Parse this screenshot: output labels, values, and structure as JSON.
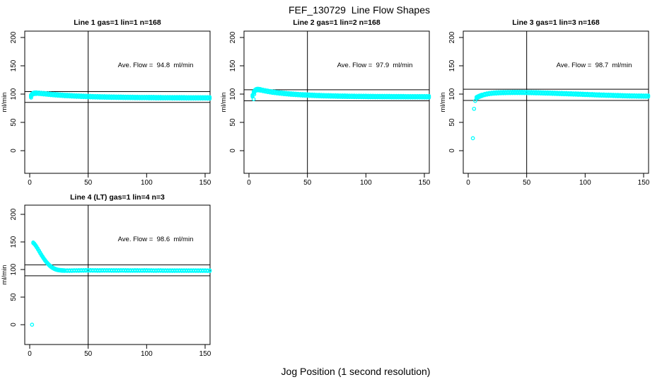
{
  "figure": {
    "title": "FEF_130729  Line Flow Shapes",
    "xlabel": "Jog Position (1 second resolution)",
    "background_color": "#ffffff",
    "axis_color": "#000000",
    "point_color": "#00ffff"
  },
  "chart_data": [
    {
      "type": "scatter",
      "title": "Line 1 gas=1 lin=1 n=168",
      "annotation": "Ave. Flow =  94.8  ml/min",
      "ave_flow_ml_min": 94.8,
      "n": 168,
      "ylabel": "ml/min",
      "xticks": [
        0,
        50,
        100,
        150
      ],
      "yticks": [
        0,
        50,
        100,
        150,
        200
      ],
      "xlim": [
        -5,
        155
      ],
      "ylim": [
        -40,
        210
      ],
      "vline": 50,
      "hlines": [
        104.3,
        85.3
      ],
      "band_spread": 1.6,
      "outliers": [
        [
          1.2,
          93.8
        ]
      ],
      "band": [
        [
          1,
          97
        ],
        [
          2,
          99.5
        ],
        [
          3,
          100.9
        ],
        [
          4,
          101.5
        ],
        [
          5,
          101.7
        ],
        [
          6,
          101.7
        ],
        [
          8,
          101.4
        ],
        [
          10,
          101.1
        ],
        [
          12,
          100.7
        ],
        [
          14,
          100.3
        ],
        [
          16,
          99.9
        ],
        [
          18,
          99.5
        ],
        [
          20,
          99.1
        ],
        [
          22,
          98.8
        ],
        [
          24,
          98.5
        ],
        [
          26,
          98.2
        ],
        [
          28,
          97.9
        ],
        [
          30,
          97.6
        ],
        [
          32,
          97.4
        ],
        [
          34,
          97.2
        ],
        [
          36,
          96.9
        ],
        [
          38,
          96.7
        ],
        [
          40,
          96.5
        ],
        [
          42,
          96.4
        ],
        [
          44,
          96.2
        ],
        [
          46,
          96
        ],
        [
          48,
          95.9
        ],
        [
          50,
          95.7
        ],
        [
          52,
          95.6
        ],
        [
          54,
          95.4
        ],
        [
          56,
          95.3
        ],
        [
          58,
          95.2
        ],
        [
          60,
          95.1
        ],
        [
          62,
          95
        ],
        [
          64,
          94.9
        ],
        [
          66,
          94.8
        ],
        [
          68,
          94.7
        ],
        [
          70,
          94.6
        ],
        [
          72,
          94.6
        ],
        [
          74,
          94.5
        ],
        [
          76,
          94.4
        ],
        [
          78,
          94.4
        ],
        [
          80,
          94.3
        ],
        [
          82,
          94.2
        ],
        [
          84,
          94.2
        ],
        [
          86,
          94.1
        ],
        [
          88,
          94.1
        ],
        [
          90,
          94
        ],
        [
          92,
          94
        ],
        [
          94,
          93.9
        ],
        [
          96,
          93.9
        ],
        [
          98,
          93.9
        ],
        [
          100,
          93.9
        ],
        [
          102,
          93.8
        ],
        [
          104,
          93.8
        ],
        [
          106,
          93.8
        ],
        [
          108,
          93.7
        ],
        [
          110,
          93.7
        ],
        [
          112,
          93.7
        ],
        [
          114,
          93.6
        ],
        [
          116,
          93.6
        ],
        [
          118,
          93.6
        ],
        [
          120,
          93.6
        ],
        [
          122,
          93.5
        ],
        [
          124,
          93.5
        ],
        [
          126,
          93.5
        ],
        [
          128,
          93.5
        ],
        [
          130,
          93.5
        ],
        [
          132,
          93.5
        ],
        [
          134,
          93.4
        ],
        [
          136,
          93.4
        ],
        [
          138,
          93.4
        ],
        [
          140,
          93.4
        ],
        [
          142,
          93.4
        ],
        [
          144,
          93.4
        ],
        [
          146,
          93.4
        ],
        [
          148,
          93.4
        ],
        [
          150,
          93.4
        ],
        [
          152,
          93.3
        ],
        [
          154,
          93.3
        ]
      ]
    },
    {
      "type": "scatter",
      "title": "Line 2 gas=1 lin=2 n=168",
      "annotation": "Ave. Flow =  97.9  ml/min",
      "ave_flow_ml_min": 97.9,
      "n": 168,
      "ylabel": "ml/min",
      "xticks": [
        0,
        50,
        100,
        150
      ],
      "yticks": [
        0,
        50,
        100,
        150,
        200
      ],
      "xlim": [
        -5,
        155
      ],
      "ylim": [
        -40,
        210
      ],
      "vline": 50,
      "hlines": [
        107.7,
        88.1
      ],
      "band_spread": 1.6,
      "outliers": [
        [
          4,
          91
        ],
        [
          4.5,
          99.5
        ]
      ],
      "band": [
        [
          3,
          97
        ],
        [
          4,
          103
        ],
        [
          5,
          105.8
        ],
        [
          6,
          107.4
        ],
        [
          7,
          108
        ],
        [
          8,
          108.1
        ],
        [
          9,
          107.8
        ],
        [
          10,
          107.4
        ],
        [
          12,
          106.5
        ],
        [
          14,
          105.7
        ],
        [
          16,
          104.9
        ],
        [
          18,
          104.2
        ],
        [
          20,
          103.5
        ],
        [
          22,
          103
        ],
        [
          24,
          102.5
        ],
        [
          26,
          102
        ],
        [
          28,
          101.6
        ],
        [
          30,
          101.2
        ],
        [
          32,
          100.8
        ],
        [
          34,
          100.4
        ],
        [
          36,
          100.1
        ],
        [
          38,
          99.8
        ],
        [
          40,
          99.5
        ],
        [
          42,
          99.2
        ],
        [
          44,
          98.9
        ],
        [
          46,
          98.7
        ],
        [
          48,
          98.5
        ],
        [
          50,
          98.3
        ],
        [
          52,
          98.1
        ],
        [
          54,
          97.9
        ],
        [
          56,
          97.7
        ],
        [
          58,
          97.5
        ],
        [
          60,
          97.4
        ],
        [
          62,
          97.2
        ],
        [
          64,
          97.1
        ],
        [
          66,
          97
        ],
        [
          68,
          96.9
        ],
        [
          70,
          96.8
        ],
        [
          72,
          96.7
        ],
        [
          74,
          96.6
        ],
        [
          76,
          96.5
        ],
        [
          78,
          96.4
        ],
        [
          80,
          96.3
        ],
        [
          82,
          96.3
        ],
        [
          84,
          96.2
        ],
        [
          86,
          96.1
        ],
        [
          88,
          96.1
        ],
        [
          90,
          96
        ],
        [
          92,
          95.9
        ],
        [
          94,
          95.9
        ],
        [
          96,
          95.9
        ],
        [
          98,
          95.8
        ],
        [
          100,
          95.8
        ],
        [
          102,
          95.7
        ],
        [
          104,
          95.7
        ],
        [
          106,
          95.7
        ],
        [
          108,
          95.6
        ],
        [
          110,
          95.6
        ],
        [
          112,
          95.6
        ],
        [
          114,
          95.5
        ],
        [
          116,
          95.5
        ],
        [
          118,
          95.5
        ],
        [
          120,
          95.5
        ],
        [
          122,
          95.4
        ],
        [
          124,
          95.4
        ],
        [
          126,
          95.4
        ],
        [
          128,
          95.4
        ],
        [
          130,
          95.4
        ],
        [
          132,
          95.4
        ],
        [
          134,
          95.3
        ],
        [
          136,
          95.3
        ],
        [
          138,
          95.3
        ],
        [
          140,
          95.3
        ],
        [
          142,
          95.3
        ],
        [
          144,
          95.3
        ],
        [
          146,
          95.3
        ],
        [
          148,
          95.3
        ],
        [
          150,
          95.2
        ],
        [
          152,
          95.2
        ],
        [
          154,
          95.2
        ]
      ]
    },
    {
      "type": "scatter",
      "title": "Line 3 gas=1 lin=3 n=168",
      "annotation": "Ave. Flow =  98.7  ml/min",
      "ave_flow_ml_min": 98.7,
      "n": 168,
      "ylabel": "ml/min",
      "xticks": [
        0,
        50,
        100,
        150
      ],
      "yticks": [
        0,
        50,
        100,
        150,
        200
      ],
      "xlim": [
        -5,
        155
      ],
      "ylim": [
        -40,
        210
      ],
      "vline": 50,
      "hlines": [
        108.6,
        88.8
      ],
      "band_spread": 1.4,
      "outliers": [
        [
          4,
          22
        ],
        [
          5,
          74
        ],
        [
          6,
          88
        ]
      ],
      "band": [
        [
          7,
          93.5
        ],
        [
          8,
          94.6
        ],
        [
          9,
          95.6
        ],
        [
          10,
          96.5
        ],
        [
          11,
          97.3
        ],
        [
          12,
          98
        ],
        [
          14,
          99.2
        ],
        [
          16,
          100.2
        ],
        [
          18,
          100.9
        ],
        [
          20,
          101.4
        ],
        [
          22,
          101.8
        ],
        [
          24,
          102.1
        ],
        [
          26,
          102.3
        ],
        [
          28,
          102.5
        ],
        [
          30,
          102.6
        ],
        [
          32,
          102.7
        ],
        [
          34,
          102.8
        ],
        [
          36,
          102.8
        ],
        [
          38,
          102.9
        ],
        [
          40,
          102.9
        ],
        [
          42,
          102.9
        ],
        [
          44,
          102.9
        ],
        [
          46,
          102.9
        ],
        [
          48,
          102.8
        ],
        [
          50,
          102.8
        ],
        [
          52,
          102.7
        ],
        [
          54,
          102.6
        ],
        [
          56,
          102.5
        ],
        [
          58,
          102.4
        ],
        [
          60,
          102.3
        ],
        [
          62,
          102.2
        ],
        [
          64,
          102
        ],
        [
          66,
          101.9
        ],
        [
          68,
          101.8
        ],
        [
          70,
          101.7
        ],
        [
          72,
          101.5
        ],
        [
          74,
          101.4
        ],
        [
          76,
          101.2
        ],
        [
          78,
          101.1
        ],
        [
          80,
          101
        ],
        [
          82,
          100.8
        ],
        [
          84,
          100.7
        ],
        [
          86,
          100.5
        ],
        [
          88,
          100.4
        ],
        [
          90,
          100.2
        ],
        [
          92,
          100.1
        ],
        [
          94,
          99.9
        ],
        [
          96,
          99.8
        ],
        [
          98,
          99.6
        ],
        [
          100,
          99.4
        ],
        [
          102,
          99.3
        ],
        [
          104,
          99.1
        ],
        [
          106,
          99
        ],
        [
          108,
          98.8
        ],
        [
          110,
          98.6
        ],
        [
          112,
          98.5
        ],
        [
          114,
          98.3
        ],
        [
          116,
          98.2
        ],
        [
          118,
          98
        ],
        [
          120,
          97.9
        ],
        [
          122,
          97.8
        ],
        [
          124,
          97.6
        ],
        [
          126,
          97.5
        ],
        [
          128,
          97.4
        ],
        [
          130,
          97.3
        ],
        [
          132,
          97.1
        ],
        [
          134,
          97
        ],
        [
          136,
          96.9
        ],
        [
          138,
          96.8
        ],
        [
          140,
          96.7
        ],
        [
          142,
          96.7
        ],
        [
          144,
          96.6
        ],
        [
          146,
          96.5
        ],
        [
          148,
          96.5
        ],
        [
          150,
          96.4
        ],
        [
          152,
          96.4
        ],
        [
          154,
          96.4
        ]
      ]
    },
    {
      "type": "scatter",
      "title": "Line 4 (LT) gas=1 lin=4 n=3",
      "annotation": "Ave. Flow =  98.6  ml/min",
      "ave_flow_ml_min": 98.6,
      "n": 3,
      "ylabel": "ml/min",
      "xticks": [
        0,
        50,
        100,
        150
      ],
      "yticks": [
        0,
        50,
        100,
        150,
        200
      ],
      "xlim": [
        -5,
        155
      ],
      "ylim": [
        -40,
        210
      ],
      "vline": 50,
      "hlines": [
        108.5,
        88.7
      ],
      "band_spread": 0.8,
      "outliers": [
        [
          2,
          0
        ]
      ],
      "band": [
        [
          3,
          148.5
        ],
        [
          4,
          146.5
        ],
        [
          5,
          143.8
        ],
        [
          6,
          140.6
        ],
        [
          7,
          137.2
        ],
        [
          8,
          133.6
        ],
        [
          9,
          130
        ],
        [
          10,
          126.5
        ],
        [
          11,
          123.2
        ],
        [
          12,
          120
        ],
        [
          13,
          117
        ],
        [
          14,
          114.2
        ],
        [
          15,
          111.7
        ],
        [
          16,
          109.4
        ],
        [
          17,
          107.4
        ],
        [
          18,
          105.6
        ],
        [
          19,
          104
        ],
        [
          20,
          102.7
        ],
        [
          21,
          101.6
        ],
        [
          22,
          100.7
        ],
        [
          23,
          100
        ],
        [
          24,
          99.4
        ],
        [
          25,
          99
        ],
        [
          26,
          98.7
        ],
        [
          27,
          98.5
        ],
        [
          28,
          98.3
        ],
        [
          29,
          98.2
        ],
        [
          30,
          98.1
        ],
        [
          32,
          98
        ],
        [
          34,
          98
        ],
        [
          36,
          98.1
        ],
        [
          38,
          98.2
        ],
        [
          40,
          98.2
        ],
        [
          42,
          98.3
        ],
        [
          44,
          98.4
        ],
        [
          46,
          98.4
        ],
        [
          48,
          98.5
        ],
        [
          50,
          98.5
        ],
        [
          52,
          98.5
        ],
        [
          54,
          98.4
        ],
        [
          56,
          98.4
        ],
        [
          58,
          98.3
        ],
        [
          60,
          98.3
        ],
        [
          62,
          98.4
        ],
        [
          64,
          98.4
        ],
        [
          66,
          98.4
        ],
        [
          68,
          98.4
        ],
        [
          70,
          98.3
        ],
        [
          72,
          98.3
        ],
        [
          74,
          98.3
        ],
        [
          76,
          98.3
        ],
        [
          78,
          98.4
        ],
        [
          80,
          98.4
        ],
        [
          82,
          98.3
        ],
        [
          84,
          98.3
        ],
        [
          86,
          98.2
        ],
        [
          88,
          98.2
        ],
        [
          90,
          98.3
        ],
        [
          92,
          98.3
        ],
        [
          94,
          98.2
        ],
        [
          96,
          98.2
        ],
        [
          98,
          98.3
        ],
        [
          100,
          98.3
        ],
        [
          102,
          98.2
        ],
        [
          104,
          98.2
        ],
        [
          106,
          98.1
        ],
        [
          108,
          98.1
        ],
        [
          110,
          98.2
        ],
        [
          112,
          98.2
        ],
        [
          114,
          98.1
        ],
        [
          116,
          98.1
        ],
        [
          118,
          98.1
        ],
        [
          120,
          98.1
        ],
        [
          122,
          98
        ],
        [
          124,
          98
        ],
        [
          126,
          98.1
        ],
        [
          128,
          98.1
        ],
        [
          130,
          98
        ],
        [
          132,
          98
        ],
        [
          134,
          98
        ],
        [
          136,
          98
        ],
        [
          138,
          98.1
        ],
        [
          140,
          98.1
        ],
        [
          142,
          98
        ],
        [
          144,
          98
        ],
        [
          146,
          98
        ],
        [
          148,
          98
        ],
        [
          150,
          98
        ],
        [
          152,
          97.9
        ],
        [
          154,
          97.9
        ]
      ]
    }
  ]
}
